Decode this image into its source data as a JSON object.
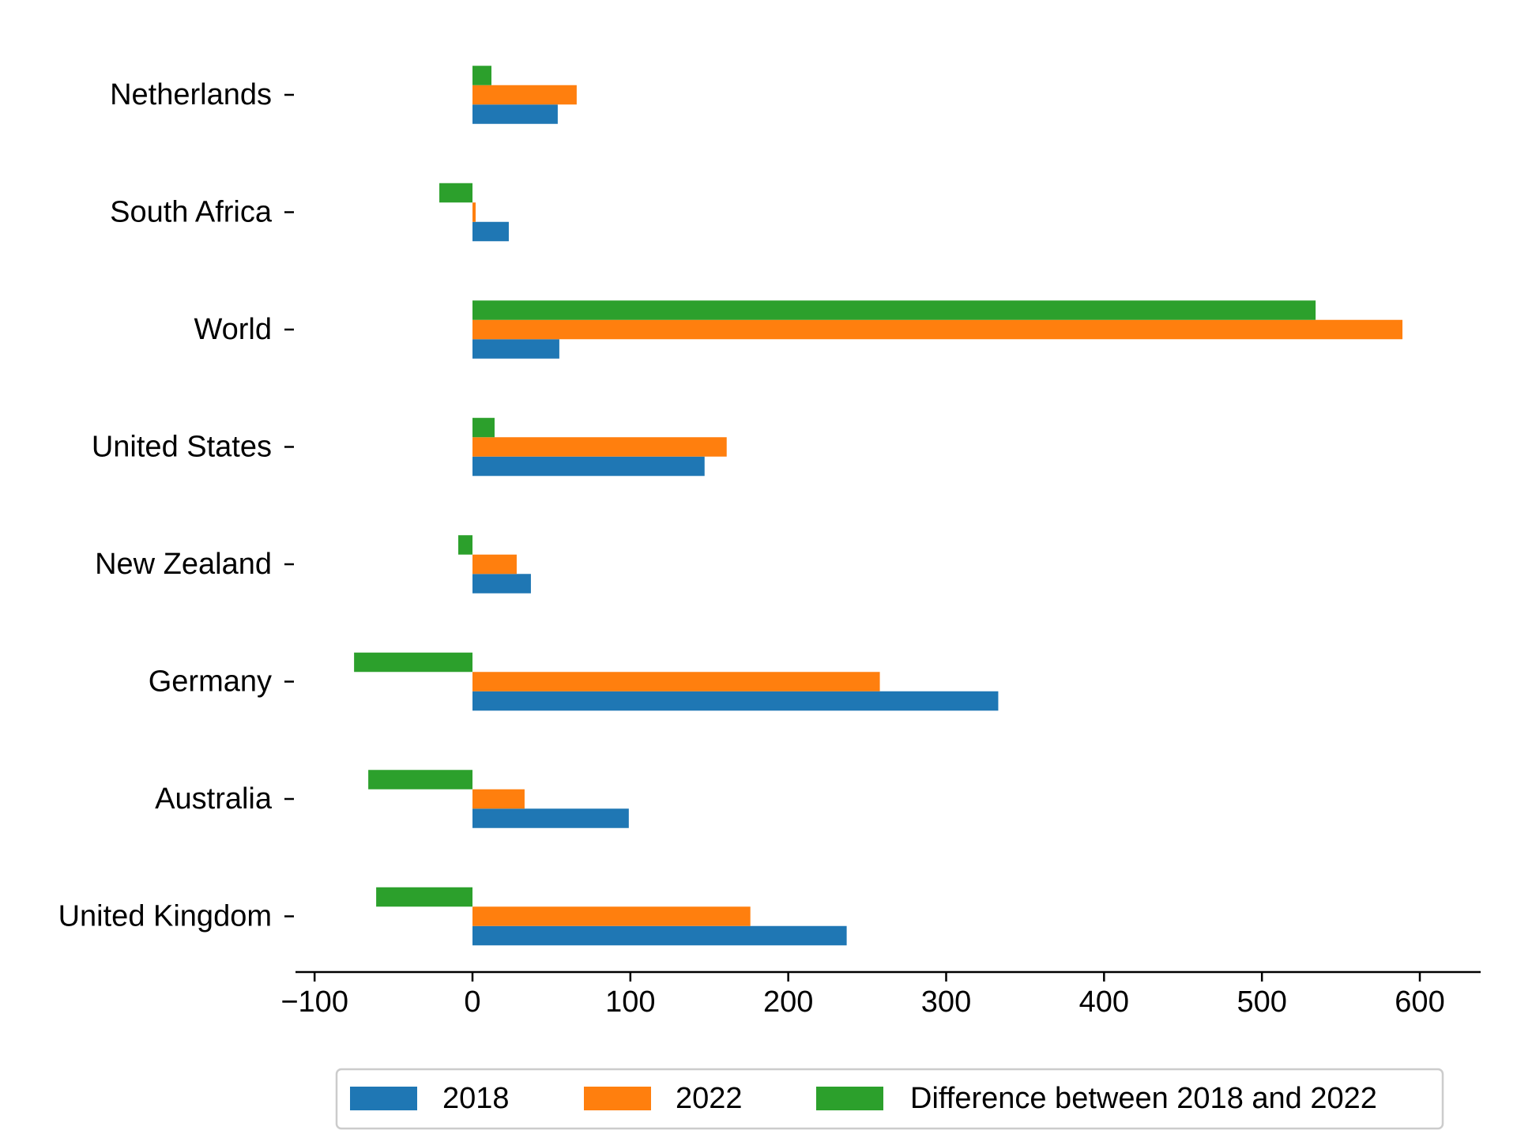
{
  "chart_data": {
    "type": "bar",
    "orientation": "horizontal",
    "categories": [
      "Netherlands",
      "South Africa",
      "World",
      "United States",
      "New Zealand",
      "Germany",
      "Australia",
      "United Kingdom"
    ],
    "series": [
      {
        "name": "2018",
        "color": "#1f77b4",
        "values": [
          54,
          23,
          55,
          147,
          37,
          333,
          99,
          237
        ]
      },
      {
        "name": "2022",
        "color": "#ff7f0e",
        "values": [
          66,
          2,
          589,
          161,
          28,
          258,
          33,
          176
        ]
      },
      {
        "name": "Difference between 2018 and 2022",
        "color": "#2ca02c",
        "values": [
          12,
          -21,
          534,
          14,
          -9,
          -75,
          -66,
          -61
        ]
      }
    ],
    "xlim": [
      -110,
      625
    ],
    "xticks": [
      -100,
      0,
      100,
      200,
      300,
      400,
      500,
      600
    ],
    "xtick_labels": [
      "−100",
      "0",
      "100",
      "200",
      "300",
      "400",
      "500",
      "600"
    ],
    "grid": false,
    "legend_position": "bottom-center"
  }
}
